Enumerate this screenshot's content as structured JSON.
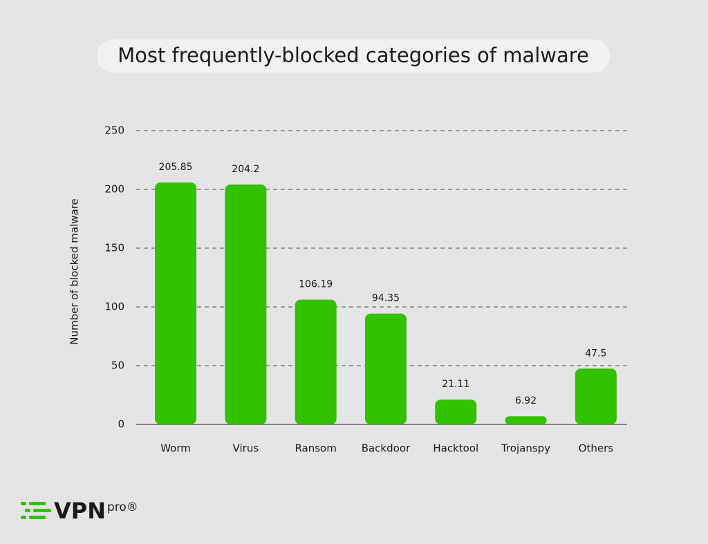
{
  "chart_data": {
    "type": "bar",
    "title": "Most frequently-blocked categories of malware",
    "y_label": "Number of blocked malware",
    "categories": [
      "Worm",
      "Virus",
      "Ransom",
      "Backdoor",
      "Hacktool",
      "Trojanspy",
      "Others"
    ],
    "values": [
      205.85,
      204.2,
      106.19,
      94.35,
      21.11,
      6.92,
      47.5
    ],
    "color": "#33c200",
    "ylim": [
      0,
      250
    ],
    "yticks": [
      0,
      50,
      100,
      150,
      200,
      250
    ],
    "grid": true
  },
  "brand": {
    "name": "VPN",
    "suffix": "pro®"
  }
}
